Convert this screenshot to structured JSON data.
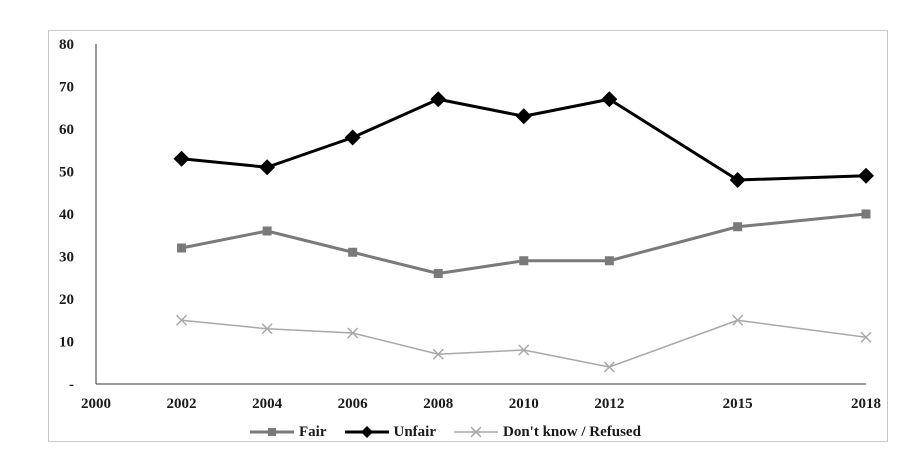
{
  "chart_data": {
    "type": "line",
    "title": "",
    "xlabel": "",
    "ylabel": "",
    "x_axis": {
      "min": 2000,
      "max": 2018,
      "tick_labels": [
        "2000",
        "2002",
        "2004",
        "2006",
        "2008",
        "2010",
        "2012",
        "2015",
        "2018"
      ]
    },
    "y_axis": {
      "min": 0,
      "max": 80,
      "tick_labels": [
        "-",
        "10",
        "20",
        "30",
        "40",
        "50",
        "60",
        "70",
        "80"
      ]
    },
    "x": [
      "2002",
      "2004",
      "2006",
      "2008",
      "2010",
      "2012",
      "2015",
      "2018"
    ],
    "series": [
      {
        "name": "Fair",
        "values": [
          32,
          36,
          31,
          26,
          29,
          29,
          37,
          40
        ],
        "color": "#7a7a7a",
        "marker": "square"
      },
      {
        "name": "Unfair",
        "values": [
          53,
          51,
          58,
          67,
          63,
          67,
          48,
          49
        ],
        "color": "#000000",
        "marker": "diamond"
      },
      {
        "name": "Don't know / Refused",
        "values": [
          15,
          13,
          12,
          7,
          8,
          4,
          15,
          11
        ],
        "color": "#a8a8a8",
        "marker": "x"
      }
    ],
    "grid": false,
    "legend_position": "bottom"
  }
}
